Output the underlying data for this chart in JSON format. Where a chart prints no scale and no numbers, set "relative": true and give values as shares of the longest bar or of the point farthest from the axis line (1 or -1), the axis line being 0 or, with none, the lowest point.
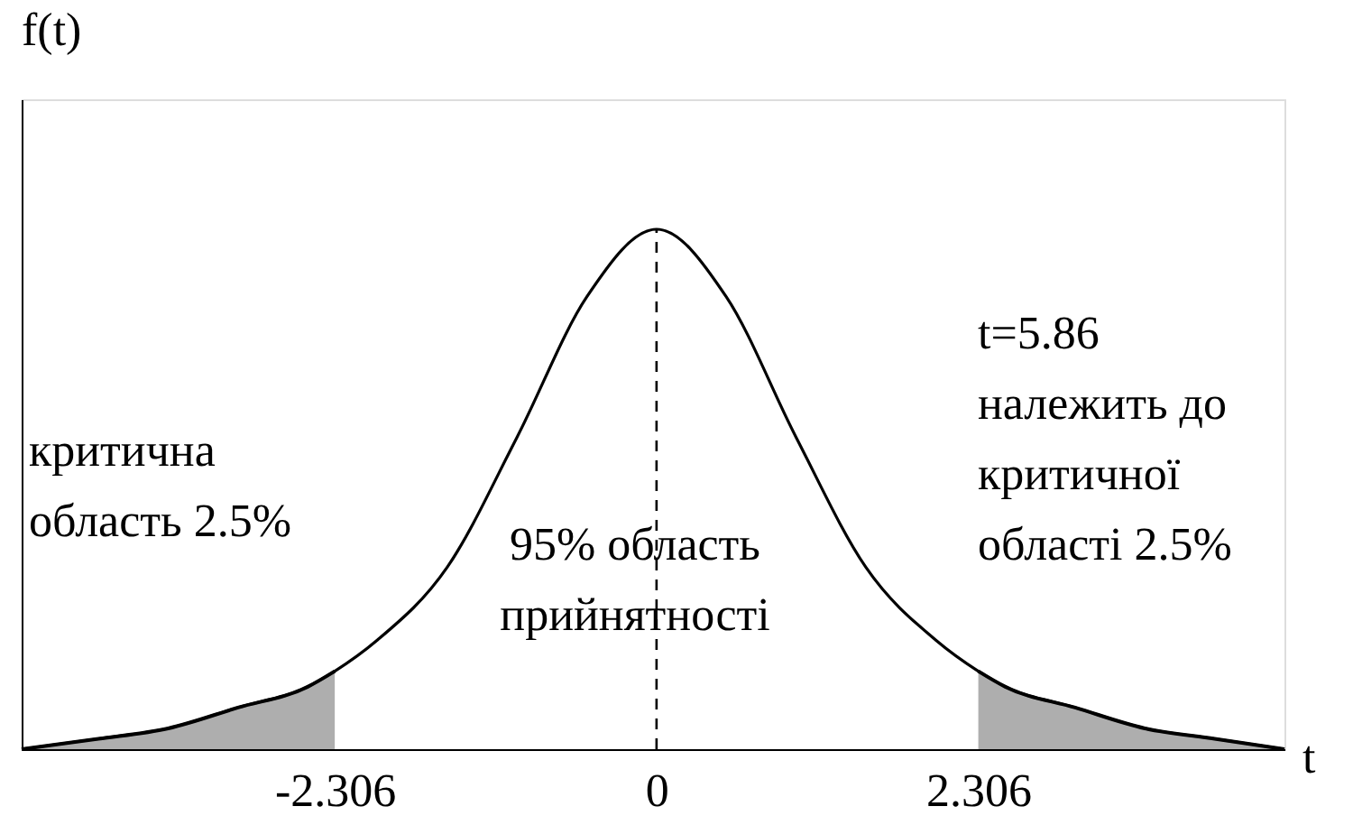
{
  "chart_data": {
    "type": "line",
    "relative": true,
    "xlabel": "t",
    "ylabel": "f(t)",
    "x": [
      -4.55,
      -4,
      -3.5,
      -3,
      -2.5,
      -2.306,
      -2,
      -1.5,
      -1,
      -0.5,
      0,
      0.5,
      1,
      1.5,
      2,
      2.306,
      2.5,
      3,
      3.5,
      4,
      4.5
    ],
    "series": [
      {
        "color": "#000000",
        "values": [
          0.0,
          0.02,
          0.04,
          0.08,
          0.12,
          0.15,
          0.21,
          0.35,
          0.6,
          0.87,
          1,
          0.87,
          0.6,
          0.35,
          0.21,
          0.15,
          0.12,
          0.08,
          0.04,
          0.02,
          0.0
        ]
      },
      {
        "type": "area",
        "color": "#9a9a9a",
        "x": [
          -4.55,
          -4,
          -3.5,
          -3,
          -2.5,
          -2.306
        ],
        "values": [
          0.0,
          0.02,
          0.04,
          0.08,
          0.12,
          0.15
        ]
      },
      {
        "type": "area",
        "color": "#9a9a9a",
        "x": [
          2.306,
          2.5,
          3,
          3.5,
          4,
          4.5
        ],
        "values": [
          0.15,
          0.12,
          0.08,
          0.04,
          0.02,
          0.0
        ]
      }
    ],
    "xlim": [
      -4.55,
      4.5
    ],
    "xticks": [
      -2.306,
      0,
      2.306
    ],
    "tick_labels": "x",
    "grid": false,
    "ref_lines": [
      {
        "axis": "x",
        "value": 0,
        "label": null,
        "color": "#000000",
        "line_style": "dashed"
      }
    ],
    "annotations": [
      "критична\nобласть 2.5%",
      "95% область\nприйнятності",
      "t=5.86\nналежить до\nкритичної\nобласті 2.5%"
    ]
  }
}
